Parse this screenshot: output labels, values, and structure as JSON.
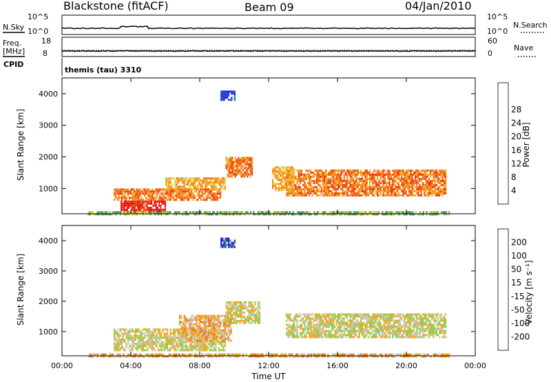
{
  "header": {
    "station": "Blackstone (fitACF)",
    "beam": "Beam 09",
    "date": "04/Jan/2010"
  },
  "status_panels": {
    "nsky_label": "N.Sky",
    "nsearch_label": "N.Search",
    "nsky_ticks": [
      "10^5",
      "10^0"
    ],
    "freq_label": "Freq.",
    "freq_unit": "[MHz]",
    "freq_ticks": [
      "18",
      "8"
    ],
    "nave_label": "Nave",
    "nave_ticks": [
      "60",
      "0"
    ],
    "cpid_label": "CPID",
    "cpid_text": "themis (tau) 3310"
  },
  "chart_data": [
    {
      "type": "heatmap",
      "name": "power",
      "ylabel": "Slant Range [km]",
      "ylim": [
        200,
        4500
      ],
      "yticks": [
        "1000",
        "2000",
        "3000",
        "4000"
      ],
      "xticks": [
        "00:00",
        "04:00",
        "08:00",
        "12:00",
        "16:00",
        "20:00",
        "00:00"
      ],
      "xlim_hours": [
        0,
        24
      ],
      "colorbar": {
        "label": "Power [dB]",
        "ticks": [
          "4",
          "8",
          "12",
          "16",
          "20",
          "24",
          "28"
        ],
        "colors": [
          "#1f22e0",
          "#1f5fb0",
          "#3c8a6f",
          "#58ad58",
          "#e6d13c",
          "#f2a81f",
          "#f37a16",
          "#ee3b12",
          "#e01010"
        ]
      },
      "regions": [
        {
          "t": [
            3.4,
            6.0
          ],
          "r": [
            250,
            620
          ],
          "level": 8
        },
        {
          "t": [
            3.0,
            9.2
          ],
          "r": [
            620,
            1000
          ],
          "level": 6
        },
        {
          "t": [
            6.0,
            9.5
          ],
          "r": [
            1000,
            1350
          ],
          "level": 5
        },
        {
          "t": [
            9.5,
            11.0
          ],
          "r": [
            1350,
            2000
          ],
          "level": 6
        },
        {
          "t": [
            13.0,
            22.3
          ],
          "r": [
            800,
            1600
          ],
          "level": 6
        },
        {
          "t": [
            12.2,
            13.5
          ],
          "r": [
            950,
            1700
          ],
          "level": 5
        },
        {
          "t": [
            9.2,
            10.0
          ],
          "r": [
            3800,
            4100
          ],
          "level": 0
        },
        {
          "t": [
            1.5,
            22.5
          ],
          "r": [
            180,
            280
          ],
          "level": 3
        }
      ]
    },
    {
      "type": "heatmap",
      "name": "velocity",
      "ylabel": "Slant Range [km]",
      "ylim": [
        200,
        4500
      ],
      "yticks": [
        "1000",
        "2000",
        "3000",
        "4000"
      ],
      "xticks": [
        "00:00",
        "04:00",
        "08:00",
        "12:00",
        "16:00",
        "20:00",
        "00:00"
      ],
      "xlabel": "Time UT",
      "colorbar": {
        "label": "Velocity [m s⁻¹]",
        "ticks": [
          "200",
          "100",
          "50",
          "15",
          "-15",
          "-50",
          "-100",
          "-200"
        ],
        "colors": [
          "#1f22e0",
          "#3c8a6f",
          "#58ad58",
          "#8ad04a",
          "#c8c8c0",
          "#f2a81f",
          "#f37a16",
          "#ee3b12",
          "#e01010"
        ]
      },
      "regions": [
        {
          "t": [
            3.0,
            9.5
          ],
          "r": [
            400,
            1100
          ],
          "level": 4
        },
        {
          "t": [
            6.8,
            9.8
          ],
          "r": [
            700,
            1550
          ],
          "level": 5
        },
        {
          "t": [
            9.5,
            11.5
          ],
          "r": [
            1300,
            2000
          ],
          "level": 4
        },
        {
          "t": [
            13.0,
            22.3
          ],
          "r": [
            800,
            1600
          ],
          "level": 4
        },
        {
          "t": [
            9.2,
            10.0
          ],
          "r": [
            3800,
            4100
          ],
          "level": 0
        },
        {
          "t": [
            1.5,
            22.5
          ],
          "r": [
            180,
            280
          ],
          "level": 5
        }
      ]
    }
  ]
}
